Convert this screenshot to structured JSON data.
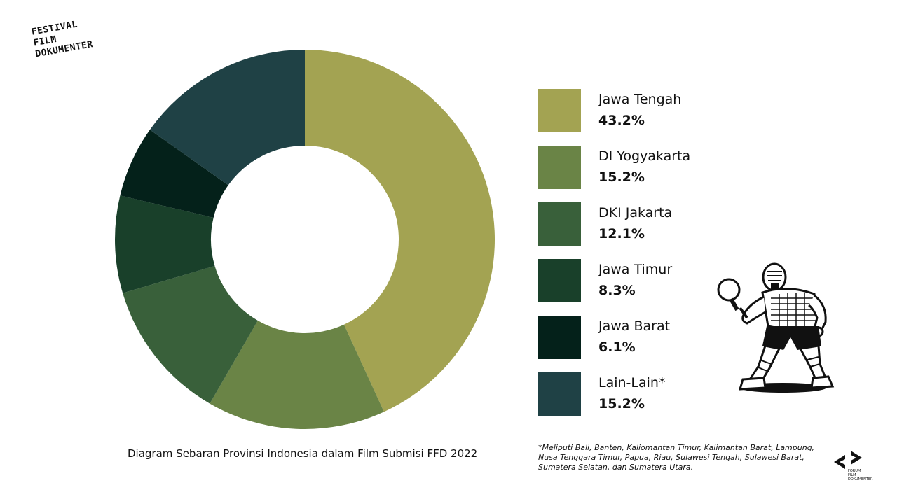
{
  "brand": {
    "logo_line1": "FESTIVAL",
    "logo_line2": "FILM",
    "logo_line3": "DOKUMENTER",
    "forum_logo_line1": "FORUM",
    "forum_logo_line2": "FILM",
    "forum_logo_line3": "DOKUMENTER"
  },
  "chart_data": {
    "type": "pie",
    "style": "donut",
    "title": "Diagram Sebaran Provinsi Indonesia dalam Film Submisi FFD 2022",
    "legend_position": "right",
    "slices": [
      {
        "label": "Jawa Tengah",
        "value": 43.2,
        "value_label": "43.2%",
        "color": "#a3a352"
      },
      {
        "label": "DI Yogyakarta",
        "value": 15.2,
        "value_label": "15.2%",
        "color": "#6a8446"
      },
      {
        "label": "DKI Jakarta",
        "value": 12.1,
        "value_label": "12.1%",
        "color": "#39603a"
      },
      {
        "label": "Jawa Timur",
        "value": 8.3,
        "value_label": "8.3%",
        "color": "#19402a"
      },
      {
        "label": "Jawa Barat",
        "value": 6.1,
        "value_label": "6.1%",
        "color": "#04211a"
      },
      {
        "label": "Lain-Lain*",
        "value": 15.2,
        "value_label": "15.2%",
        "color": "#1f4145"
      }
    ]
  },
  "footnote": "*Meliputi Bali, Banten, Kaliomantan Timur, Kalimantan Barat, Lampung, Nusa Tenggara Timur, Papua, Riau, Sulawesi Tengah, Sulawesi Barat, Sumatera Selatan, dan Sumatera Utara.",
  "illustration": {
    "icon": "table-tennis-player-icon"
  }
}
